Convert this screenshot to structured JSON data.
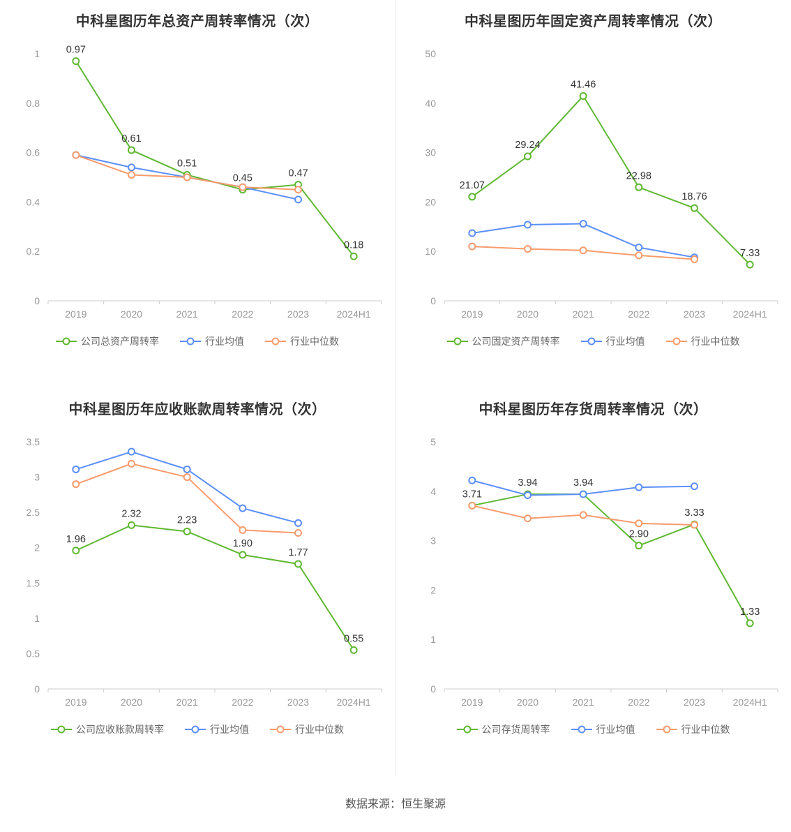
{
  "footer": {
    "source_note": "数据来源：恒生聚源"
  },
  "palette": {
    "company_green": "#5FB832",
    "industry_avg_blue": "#5B8FF9",
    "industry_median_orange": "#F89B6C",
    "axis_label": "#999999",
    "data_label": "#333333",
    "axis_line": "#cccccc"
  },
  "chart_data": [
    {
      "type": "line",
      "title": "中科星图历年总资产周转率情况（次）",
      "categories": [
        "2019",
        "2020",
        "2021",
        "2022",
        "2023",
        "2024H1"
      ],
      "ylim": [
        0,
        1
      ],
      "yticks": [
        0,
        0.2,
        0.4,
        0.6,
        0.8,
        1
      ],
      "grid": false,
      "legend_position": "bottom",
      "series": [
        {
          "key": "company",
          "name": "公司总资产周转率",
          "color": "#5FB832",
          "values": [
            0.97,
            0.61,
            0.51,
            0.45,
            0.47,
            0.18
          ],
          "data_labels": [
            "0.97",
            "0.61",
            "0.51",
            "0.45",
            "0.47",
            "0.18"
          ]
        },
        {
          "key": "industry-avg",
          "name": "行业均值",
          "color": "#5B8FF9",
          "values": [
            0.59,
            0.54,
            0.5,
            0.46,
            0.41,
            null
          ]
        },
        {
          "key": "industry-median",
          "name": "行业中位数",
          "color": "#F89B6C",
          "values": [
            0.59,
            0.51,
            0.5,
            0.46,
            0.45,
            null
          ]
        }
      ]
    },
    {
      "type": "line",
      "title": "中科星图历年固定资产周转率情况（次）",
      "categories": [
        "2019",
        "2020",
        "2021",
        "2022",
        "2023",
        "2024H1"
      ],
      "ylim": [
        0,
        50
      ],
      "yticks": [
        0,
        10,
        20,
        30,
        40,
        50
      ],
      "grid": false,
      "legend_position": "bottom",
      "series": [
        {
          "key": "company",
          "name": "公司固定资产周转率",
          "color": "#5FB832",
          "values": [
            21.07,
            29.24,
            41.46,
            22.98,
            18.76,
            7.33
          ],
          "data_labels": [
            "21.07",
            "29.24",
            "41.46",
            "22.98",
            "18.76",
            "7.33"
          ]
        },
        {
          "key": "industry-avg",
          "name": "行业均值",
          "color": "#5B8FF9",
          "values": [
            13.7,
            15.4,
            15.6,
            10.8,
            8.8,
            null
          ]
        },
        {
          "key": "industry-median",
          "name": "行业中位数",
          "color": "#F89B6C",
          "values": [
            11.0,
            10.5,
            10.2,
            9.2,
            8.4,
            null
          ]
        }
      ]
    },
    {
      "type": "line",
      "title": "中科星图历年应收账款周转率情况（次）",
      "categories": [
        "2019",
        "2020",
        "2021",
        "2022",
        "2023",
        "2024H1"
      ],
      "ylim": [
        0,
        3.5
      ],
      "yticks": [
        0,
        0.5,
        1,
        1.5,
        2,
        2.5,
        3,
        3.5
      ],
      "grid": false,
      "legend_position": "bottom",
      "series": [
        {
          "key": "company",
          "name": "公司应收账款周转率",
          "color": "#5FB832",
          "values": [
            1.96,
            2.32,
            2.23,
            1.9,
            1.77,
            0.55
          ],
          "data_labels": [
            "1.96",
            "2.32",
            "2.23",
            "1.90",
            "1.77",
            "0.55"
          ]
        },
        {
          "key": "industry-avg",
          "name": "行业均值",
          "color": "#5B8FF9",
          "values": [
            3.11,
            3.36,
            3.11,
            2.56,
            2.35,
            null
          ]
        },
        {
          "key": "industry-median",
          "name": "行业中位数",
          "color": "#F89B6C",
          "values": [
            2.9,
            3.19,
            3.0,
            2.25,
            2.21,
            null
          ]
        }
      ]
    },
    {
      "type": "line",
      "title": "中科星图历年存货周转率情况（次）",
      "categories": [
        "2019",
        "2020",
        "2021",
        "2022",
        "2023",
        "2024H1"
      ],
      "ylim": [
        0,
        5
      ],
      "yticks": [
        0,
        1,
        2,
        3,
        4,
        5
      ],
      "grid": false,
      "legend_position": "bottom",
      "series": [
        {
          "key": "company",
          "name": "公司存货周转率",
          "color": "#5FB832",
          "values": [
            3.71,
            3.94,
            3.94,
            2.9,
            3.33,
            1.33
          ],
          "data_labels": [
            "3.71",
            "3.94",
            "3.94",
            "2.90",
            "3.33",
            "1.33"
          ]
        },
        {
          "key": "industry-avg",
          "name": "行业均值",
          "color": "#5B8FF9",
          "values": [
            4.22,
            3.92,
            3.94,
            4.08,
            4.1,
            null
          ]
        },
        {
          "key": "industry-median",
          "name": "行业中位数",
          "color": "#F89B6C",
          "values": [
            3.71,
            3.45,
            3.52,
            3.35,
            3.32,
            null
          ]
        }
      ]
    }
  ]
}
